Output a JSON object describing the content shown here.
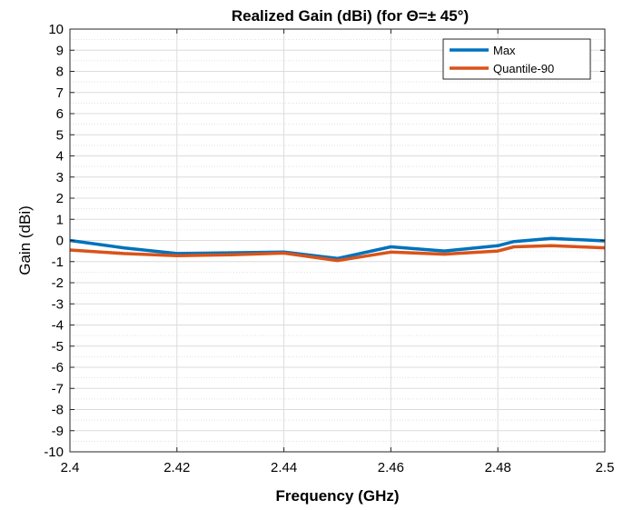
{
  "chart_data": {
    "type": "line",
    "title": "Realized Gain (dBi) (for Θ=± 45°)",
    "xlabel": "Frequency (GHz)",
    "ylabel": "Gain (dBi)",
    "xlim": [
      2.4,
      2.5
    ],
    "ylim": [
      -10,
      10
    ],
    "x_ticks": [
      2.4,
      2.42,
      2.44,
      2.46,
      2.48,
      2.5
    ],
    "x_tick_labels": [
      "2.4",
      "2.42",
      "2.44",
      "2.46",
      "2.48",
      "2.5"
    ],
    "y_ticks": [
      10,
      9,
      8,
      7,
      6,
      5,
      4,
      3,
      2,
      1,
      0,
      -1,
      -2,
      -3,
      -4,
      -5,
      -6,
      -7,
      -8,
      -9,
      -10
    ],
    "y_tick_labels": [
      "10",
      "9",
      "8",
      "7",
      "6",
      "5",
      "4",
      "3",
      "2",
      "1",
      "0",
      "-1",
      "-2",
      "-3",
      "-4",
      "-5",
      "-6",
      "-7",
      "-8",
      "-9",
      "-10"
    ],
    "grid": true,
    "legend_position": "top-right",
    "series": [
      {
        "name": "Max",
        "color": "#0072BD",
        "x": [
          2.4,
          2.41,
          2.42,
          2.44,
          2.45,
          2.46,
          2.47,
          2.48,
          2.483,
          2.49,
          2.5
        ],
        "y": [
          0.0,
          -0.35,
          -0.62,
          -0.55,
          -0.85,
          -0.3,
          -0.5,
          -0.25,
          -0.05,
          0.1,
          -0.02
        ]
      },
      {
        "name": "Quantile-90",
        "color": "#D95319",
        "x": [
          2.4,
          2.41,
          2.42,
          2.43,
          2.44,
          2.45,
          2.46,
          2.47,
          2.48,
          2.483,
          2.49,
          2.5
        ],
        "y": [
          -0.45,
          -0.62,
          -0.72,
          -0.68,
          -0.6,
          -0.95,
          -0.55,
          -0.65,
          -0.5,
          -0.3,
          -0.25,
          -0.35
        ]
      }
    ]
  }
}
